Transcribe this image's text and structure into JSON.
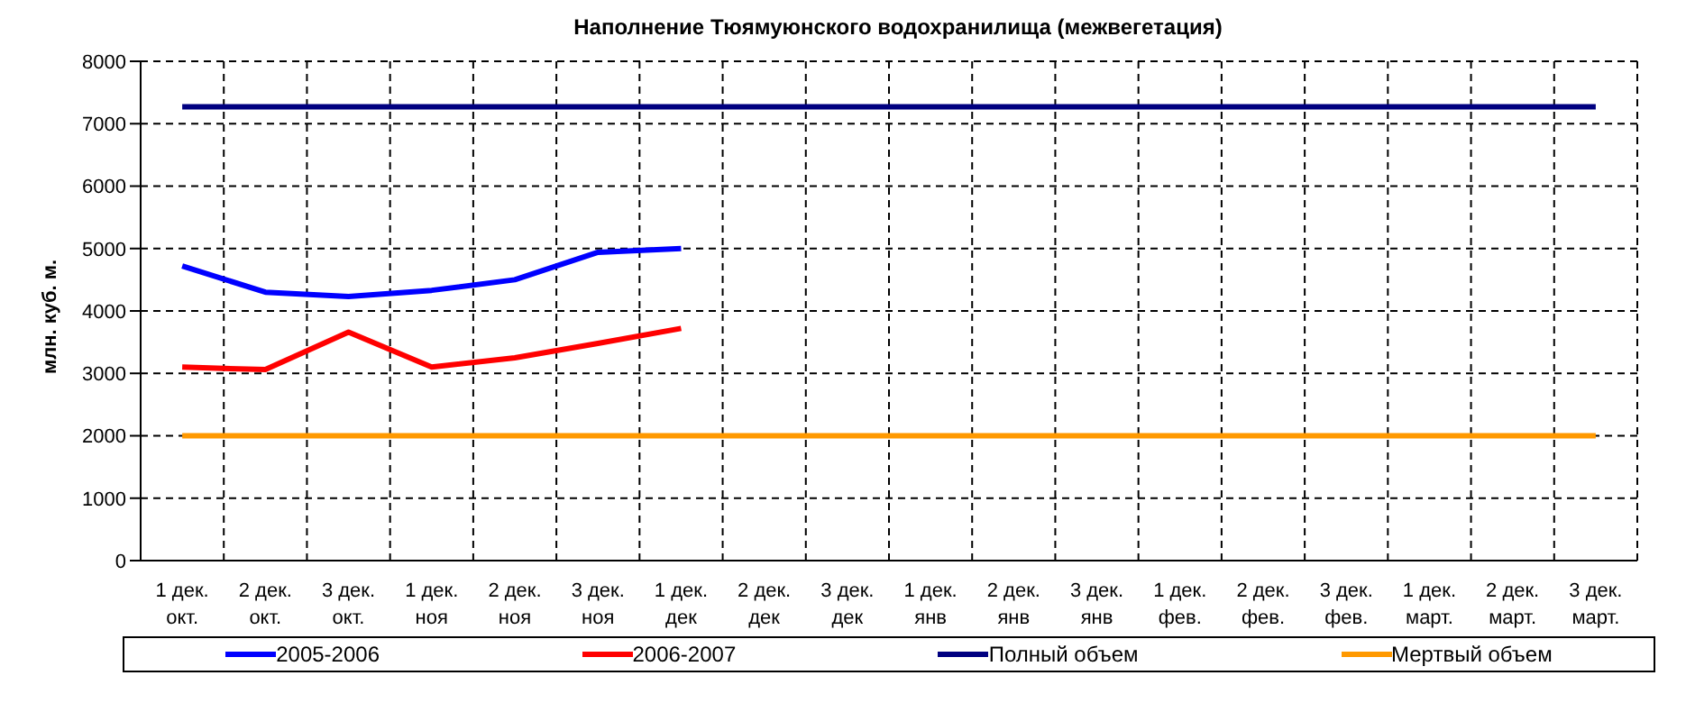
{
  "chart_data": {
    "type": "line",
    "title": "Наполнение Тюямуюнского водохранилища (межвегетация)",
    "ylabel": "млн. куб. м.",
    "categories": [
      "1 дек. окт.",
      "2 дек. окт.",
      "3 дек. окт.",
      "1 дек. ноя",
      "2 дек. ноя",
      "3 дек. ноя",
      "1 дек. дек",
      "2 дек. дек",
      "3 дек. дек",
      "1 дек. янв",
      "2 дек. янв",
      "3 дек. янв",
      "1 дек. фев.",
      "2 дек. фев.",
      "3 дек. фев.",
      "1 дек. март.",
      "2 дек. март.",
      "3 дек. март."
    ],
    "series": [
      {
        "name": "2005-2006",
        "color": "#0000ff",
        "values": [
          4720,
          4300,
          4230,
          4330,
          4500,
          4940,
          5000,
          null,
          null,
          null,
          null,
          null,
          null,
          null,
          null,
          null,
          null,
          null
        ]
      },
      {
        "name": "2006-2007",
        "color": "#ff0000",
        "values": [
          3100,
          3060,
          3660,
          3100,
          3250,
          3480,
          3720,
          null,
          null,
          null,
          null,
          null,
          null,
          null,
          null,
          null,
          null,
          null
        ]
      },
      {
        "name": "Полный объем",
        "color": "#000080",
        "values": [
          7270,
          7270,
          7270,
          7270,
          7270,
          7270,
          7270,
          7270,
          7270,
          7270,
          7270,
          7270,
          7270,
          7270,
          7270,
          7270,
          7270,
          7270
        ]
      },
      {
        "name": "Мертвый объем",
        "color": "#ff9900",
        "values": [
          2000,
          2000,
          2000,
          2000,
          2000,
          2000,
          2000,
          2000,
          2000,
          2000,
          2000,
          2000,
          2000,
          2000,
          2000,
          2000,
          2000,
          2000
        ]
      }
    ],
    "ylim": [
      0,
      8000
    ],
    "yticks": [
      0,
      1000,
      2000,
      3000,
      4000,
      5000,
      6000,
      7000,
      8000
    ],
    "grid": true,
    "legend": "bottom",
    "marker": "none",
    "line_style": "solid"
  }
}
